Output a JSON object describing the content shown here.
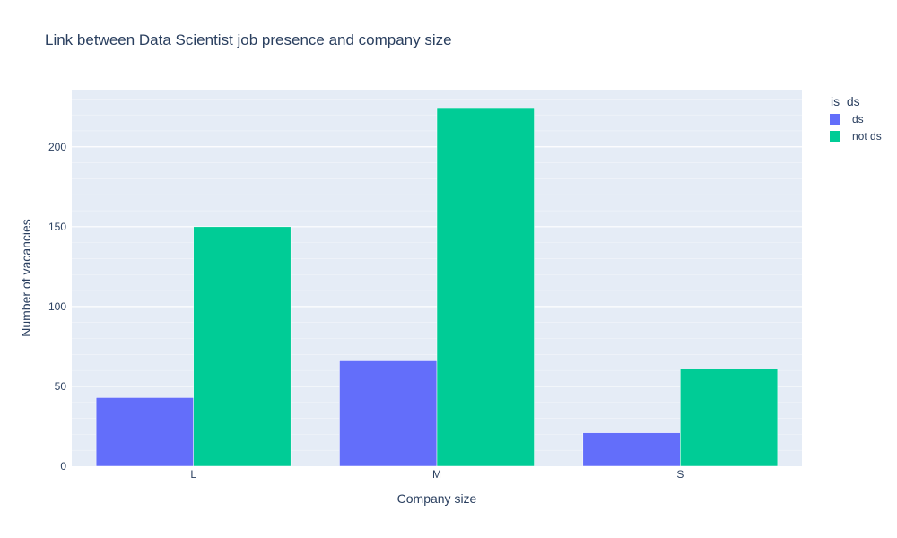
{
  "chart_data": {
    "type": "bar",
    "title": "Link between Data Scientist job presence and company size",
    "xlabel": "Company size",
    "ylabel": "Number of vacancies",
    "categories": [
      "L",
      "M",
      "S"
    ],
    "series": [
      {
        "name": "ds",
        "values": [
          43,
          66,
          21
        ],
        "color": "#636efa"
      },
      {
        "name": "not ds",
        "values": [
          150,
          224,
          61
        ],
        "color": "#00cc96"
      }
    ],
    "ylim": [
      0,
      235.8
    ],
    "yticks": [
      0,
      50,
      100,
      150,
      200
    ],
    "grid": true,
    "legend": {
      "title": "is_ds",
      "placement": "top-right"
    },
    "colors": {
      "plot_bg": "#e5ecf6",
      "grid": "#ffffff",
      "text": "#2a3f5f"
    }
  }
}
